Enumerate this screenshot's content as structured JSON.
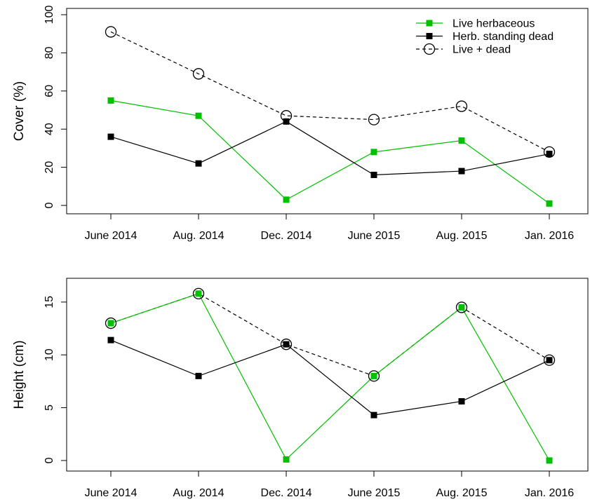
{
  "chart_data": [
    {
      "type": "line",
      "ylabel": "Cover (%)",
      "categories": [
        "June 2014",
        "Aug. 2014",
        "Dec. 2014",
        "June 2015",
        "Aug. 2015",
        "Jan. 2016"
      ],
      "series": [
        {
          "name": "Live herbaceous",
          "color": "#00c000",
          "marker": "square",
          "linestyle": "solid",
          "values": [
            55,
            47,
            3,
            28,
            34,
            1
          ]
        },
        {
          "name": "Herb. standing dead",
          "color": "#000000",
          "marker": "square",
          "linestyle": "solid",
          "values": [
            36,
            22,
            44,
            16,
            18,
            27
          ]
        },
        {
          "name": "Live + dead",
          "color": "#000000",
          "marker": "circle",
          "linestyle": "dashed",
          "values": [
            91,
            69,
            47,
            45,
            52,
            28
          ]
        }
      ],
      "ylim": [
        -4.4,
        103.3
      ],
      "yticks": [
        0,
        20,
        40,
        60,
        80,
        100
      ],
      "legend": "top-right"
    },
    {
      "type": "line",
      "ylabel": "Height (cm)",
      "categories": [
        "June 2014",
        "Aug. 2014",
        "Dec. 2014",
        "June 2015",
        "Aug. 2015",
        "Jan. 2016"
      ],
      "series": [
        {
          "color": "#000000",
          "marker": "circle",
          "linestyle": "dashed",
          "values": [
            13,
            15.8,
            11,
            8,
            14.5,
            9.5
          ]
        },
        {
          "color": "#00c000",
          "marker": "square",
          "linestyle": "solid",
          "values": [
            13,
            15.8,
            0.1,
            8,
            14.5,
            0
          ]
        },
        {
          "color": "#000000",
          "marker": "square",
          "linestyle": "solid",
          "values": [
            11.4,
            8,
            11,
            4.3,
            5.6,
            9.5
          ]
        }
      ],
      "ylim": [
        -1,
        17.25
      ],
      "yticks": [
        0,
        5,
        10,
        15
      ]
    }
  ]
}
